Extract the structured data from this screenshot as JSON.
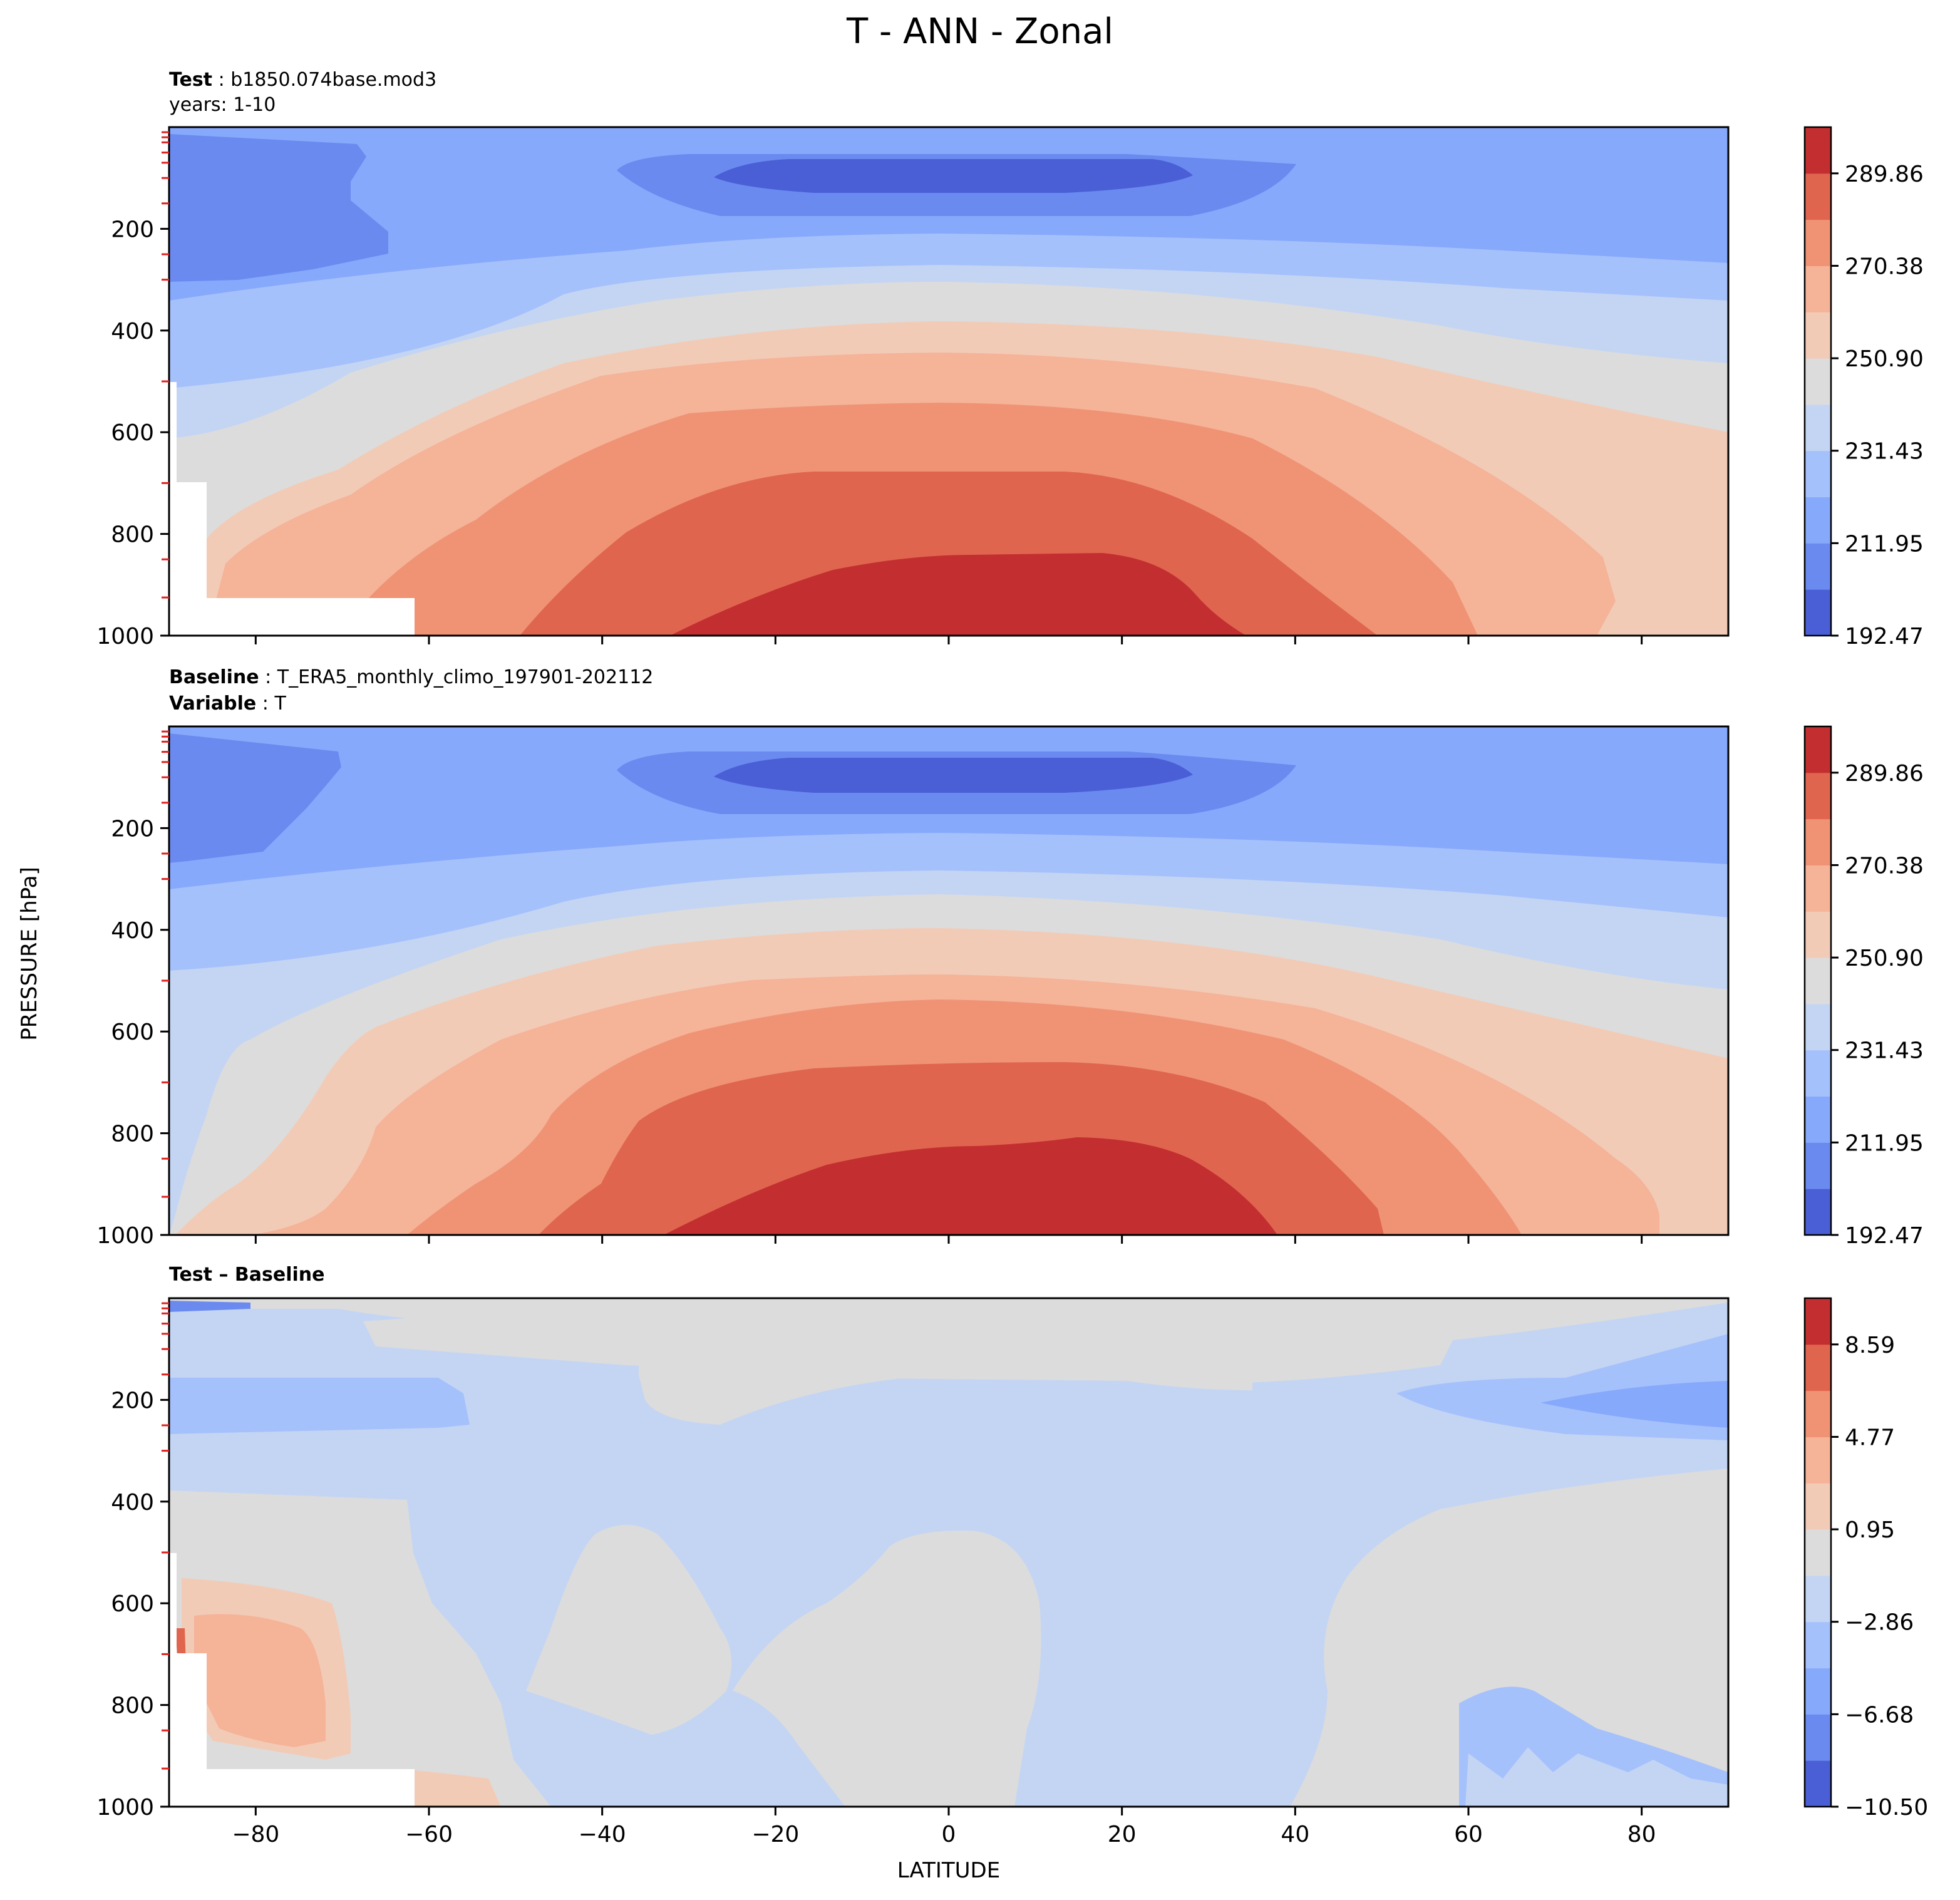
{
  "figure": {
    "title": "T - ANN - Zonal",
    "ylabel": "PRESSURE [hPa]",
    "xlabel": "LATITUDE"
  },
  "panel_labels": {
    "test_key": "Test",
    "test_value": "b1850.074base.mod3",
    "test_years": "years: 1-10",
    "baseline_key": "Baseline",
    "baseline_value": "T_ERA5_monthly_climo_197901-202112",
    "variable_key": "Variable",
    "variable_value": "T",
    "diff_label": "Test – Baseline"
  },
  "colors": {
    "abs_levels": [
      "#4a5fd6",
      "#6a8af0",
      "#87a9fb",
      "#a5c1fc",
      "#c4d5f3",
      "#dcdcdc",
      "#f2cbb7",
      "#f5b398",
      "#f09375",
      "#e0654f",
      "#c32f30"
    ],
    "diff_levels": [
      "#4a5fd6",
      "#6a8af0",
      "#87a9fb",
      "#a5c1fc",
      "#c4d5f3",
      "#dcdcdc",
      "#f2cbb7",
      "#f5b398",
      "#f09375",
      "#e0654f",
      "#c32f30"
    ],
    "missing": "#ffffff"
  },
  "chart_data": [
    {
      "type": "contour",
      "name": "Test",
      "xlim": [
        -90,
        90
      ],
      "ylim": [
        1000,
        0
      ],
      "yticks": [
        200,
        400,
        600,
        800,
        1000
      ],
      "xticks": [
        -80,
        -60,
        -40,
        -20,
        0,
        20,
        40,
        60,
        80
      ],
      "colorbar": {
        "min": 192.47,
        "max": 299.6,
        "tick_labels": [
          "192.47",
          "211.95",
          "231.43",
          "250.90",
          "270.38",
          "289.86"
        ]
      },
      "approx_level_tops_hPa_at_equator": [
        60,
        140,
        190,
        225,
        255,
        370,
        460,
        540,
        680,
        840
      ]
    },
    {
      "type": "contour",
      "name": "Baseline",
      "xlim": [
        -90,
        90
      ],
      "ylim": [
        1000,
        0
      ],
      "yticks": [
        200,
        400,
        600,
        800,
        1000
      ],
      "xticks": [
        -80,
        -60,
        -40,
        -20,
        0,
        20,
        40,
        60,
        80
      ],
      "colorbar": {
        "min": 192.47,
        "max": 299.6,
        "tick_labels": [
          "192.47",
          "211.95",
          "231.43",
          "250.90",
          "270.38",
          "289.86"
        ]
      }
    },
    {
      "type": "contour",
      "name": "Test – Baseline",
      "xlim": [
        -90,
        90
      ],
      "ylim": [
        1000,
        0
      ],
      "yticks": [
        200,
        400,
        600,
        800,
        1000
      ],
      "xticks": [
        -80,
        -60,
        -40,
        -20,
        0,
        20,
        40,
        60,
        80
      ],
      "xtick_labels": [
        "−80",
        "−60",
        "−40",
        "−20",
        "0",
        "20",
        "40",
        "60",
        "80"
      ],
      "colorbar": {
        "min": -10.5,
        "max": 10.5,
        "tick_labels": [
          "−10.50",
          "−6.68",
          "−2.86",
          "0.95",
          "4.77",
          "8.59"
        ]
      }
    }
  ]
}
